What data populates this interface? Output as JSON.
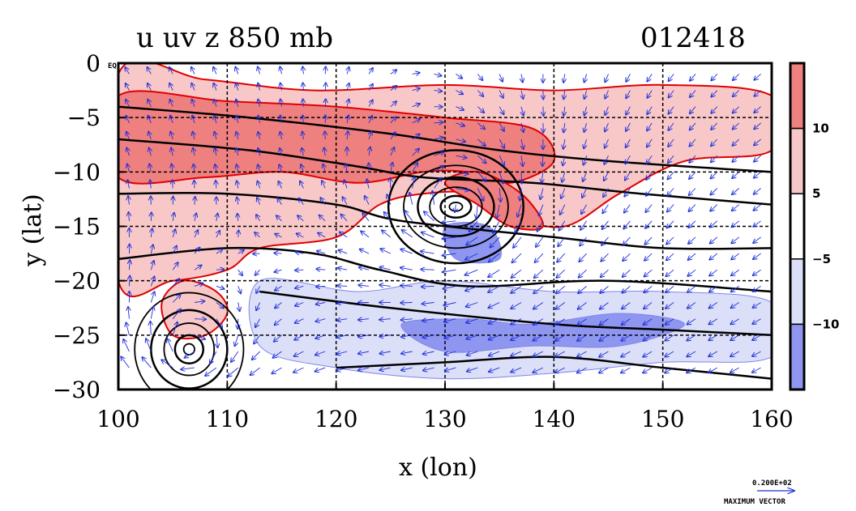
{
  "chart_data": {
    "type": "heatmap",
    "title": "u uv z 850 mb",
    "date_label": "012418",
    "xlabel": "x (lon)",
    "ylabel": "y (lat)",
    "xlim": [
      100,
      160
    ],
    "ylim": [
      -30,
      0
    ],
    "x_ticks": [
      "100",
      "110",
      "120",
      "130",
      "140",
      "150",
      "160"
    ],
    "y_ticks": [
      "0",
      "−5",
      "−10",
      "−15",
      "−20",
      "−25",
      "−30"
    ],
    "eq_label": "EQ",
    "grid": "dashed",
    "colorbar": {
      "labels": [
        "10",
        "5",
        "−5",
        "−10"
      ],
      "levels": [
        -15,
        -10,
        -5,
        5,
        10,
        15
      ],
      "colors": [
        "#8f96f0",
        "#dcdff8",
        "#ffffff",
        "#f8c8c8",
        "#ef8080"
      ]
    },
    "shaded_u_regions": [
      {
        "level": "pos_mid",
        "points": [
          [
            100,
            -1
          ],
          [
            108,
            -1.5
          ],
          [
            118,
            -2.5
          ],
          [
            130,
            -2
          ],
          [
            140,
            -2.5
          ],
          [
            150,
            -2
          ],
          [
            160,
            -3
          ],
          [
            160,
            -8
          ],
          [
            152,
            -9
          ],
          [
            146,
            -12
          ],
          [
            141,
            -15
          ],
          [
            136,
            -14
          ],
          [
            133,
            -12
          ],
          [
            128,
            -12
          ],
          [
            124,
            -13
          ],
          [
            120,
            -16
          ],
          [
            113,
            -17
          ],
          [
            110,
            -19
          ],
          [
            105,
            -20
          ],
          [
            100,
            -20
          ]
        ]
      },
      {
        "level": "pos_high",
        "points": [
          [
            100,
            -3
          ],
          [
            110,
            -3.5
          ],
          [
            120,
            -4
          ],
          [
            130,
            -5
          ],
          [
            138,
            -6
          ],
          [
            140,
            -9
          ],
          [
            136,
            -11
          ],
          [
            132,
            -10
          ],
          [
            128,
            -10
          ],
          [
            122,
            -11
          ],
          [
            115,
            -10
          ],
          [
            108,
            -10.5
          ],
          [
            100,
            -10.5
          ]
        ]
      },
      {
        "level": "pos_high",
        "points": [
          [
            130,
            -11
          ],
          [
            133,
            -10
          ],
          [
            137,
            -12
          ],
          [
            139,
            -15
          ],
          [
            136,
            -15
          ],
          [
            133,
            -13
          ]
        ]
      },
      {
        "level": "pos_mid",
        "points": [
          [
            106,
            -20
          ],
          [
            109,
            -21
          ],
          [
            110,
            -23
          ],
          [
            108,
            -25
          ],
          [
            105,
            -25
          ],
          [
            104,
            -22
          ]
        ]
      },
      {
        "level": "neg_mid",
        "points": [
          [
            113,
            -20
          ],
          [
            122,
            -21
          ],
          [
            130,
            -20
          ],
          [
            140,
            -21
          ],
          [
            150,
            -21
          ],
          [
            160,
            -22
          ],
          [
            160,
            -27
          ],
          [
            150,
            -27.5
          ],
          [
            140,
            -28.5
          ],
          [
            130,
            -29
          ],
          [
            120,
            -28
          ],
          [
            113,
            -26
          ]
        ]
      },
      {
        "level": "neg_high",
        "points": [
          [
            126,
            -24
          ],
          [
            132,
            -23.5
          ],
          [
            138,
            -24
          ],
          [
            146,
            -23
          ],
          [
            152,
            -24
          ],
          [
            146,
            -26
          ],
          [
            138,
            -26
          ],
          [
            130,
            -26.5
          ]
        ]
      },
      {
        "level": "neg_high",
        "points": [
          [
            130,
            -15
          ],
          [
            134,
            -15
          ],
          [
            135,
            -18
          ],
          [
            131,
            -18
          ]
        ]
      }
    ],
    "z_contours": [
      {
        "points": [
          [
            100,
            -4
          ],
          [
            112,
            -5
          ],
          [
            125,
            -6.5
          ],
          [
            135,
            -8
          ],
          [
            145,
            -9
          ],
          [
            160,
            -10
          ]
        ]
      },
      {
        "points": [
          [
            100,
            -7
          ],
          [
            112,
            -8
          ],
          [
            122,
            -9.5
          ],
          [
            128,
            -10.5
          ],
          [
            138,
            -11
          ],
          [
            148,
            -12
          ],
          [
            160,
            -13
          ]
        ]
      },
      {
        "points": [
          [
            100,
            -12
          ],
          [
            110,
            -12
          ],
          [
            120,
            -13
          ],
          [
            126,
            -14.5
          ],
          [
            140,
            -16
          ],
          [
            150,
            -17
          ],
          [
            160,
            -17
          ]
        ]
      },
      {
        "points": [
          [
            100,
            -18
          ],
          [
            110,
            -17
          ],
          [
            118,
            -17.5
          ],
          [
            124,
            -19
          ],
          [
            132,
            -20.5
          ],
          [
            145,
            -20
          ],
          [
            160,
            -21
          ]
        ]
      },
      {
        "points": [
          [
            113,
            -21
          ],
          [
            125,
            -22.5
          ],
          [
            140,
            -24
          ],
          [
            150,
            -24.5
          ],
          [
            160,
            -25
          ]
        ]
      },
      {
        "points": [
          [
            120,
            -28
          ],
          [
            130,
            -27.5
          ],
          [
            140,
            -27
          ],
          [
            150,
            -28
          ],
          [
            160,
            -29
          ]
        ]
      }
    ],
    "cyclone_rings": [
      {
        "cx": 131,
        "cy": -13.2,
        "rx": [
          0.6,
          1.4,
          2.4,
          3.5,
          4.8,
          6.2
        ],
        "ry": [
          0.4,
          1.0,
          1.8,
          2.7,
          3.8,
          5.2
        ]
      },
      {
        "cx": 106.5,
        "cy": -26.3,
        "rx": [
          0.5,
          1.3,
          2.3,
          3.5,
          5.0
        ],
        "ry": [
          0.5,
          1.3,
          2.4,
          3.6,
          5.2
        ]
      }
    ],
    "vector_field": {
      "x_start": 101,
      "x_end": 159,
      "x_step": 2,
      "y_start": -1,
      "y_end": -29,
      "y_step": -1.5,
      "cyclones": [
        [
          131,
          -13.2
        ],
        [
          106.5,
          -26.3
        ]
      ],
      "background_u": -1.0,
      "color": "#1f2fd8"
    },
    "max_vector": {
      "value_label": "0.200E+02",
      "caption": "MAXIMUM VECTOR"
    }
  }
}
